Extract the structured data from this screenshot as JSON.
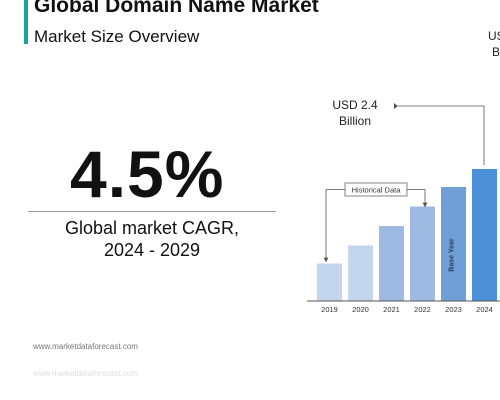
{
  "header": {
    "title": "Global Domain Name Market",
    "subtitle": "Market Size Overview"
  },
  "cagr": {
    "value": "4.5%",
    "label_line1": "Global market CAGR,",
    "label_line2": "2024 - 2029"
  },
  "footer": {
    "source": "www.marketdataforecast.com",
    "source_faded": "www.marketdataforecast.com"
  },
  "colors": {
    "accent": "#1aa59a",
    "bar_light": "#c3d6ee",
    "bar_mid": "#9ebae2",
    "bar_dark": "#6f9fd6",
    "bar_highlight": "#4a8fd8"
  },
  "chart_data": {
    "type": "bar",
    "categories": [
      "2019",
      "2020",
      "2021",
      "2022",
      "2023",
      "2024"
    ],
    "values": [
      1.25,
      1.85,
      2.5,
      3.15,
      3.8,
      4.4
    ],
    "ylim": [
      0,
      5
    ],
    "xlabel": "",
    "ylabel": "",
    "grid": false,
    "annotations": {
      "historical": "Historical Data",
      "base_year": "Base Year",
      "value_2019_line1": "USD 2.4",
      "value_2019_line2": "Billion",
      "cut_right_line1": "US",
      "cut_right_line2": "B"
    }
  }
}
